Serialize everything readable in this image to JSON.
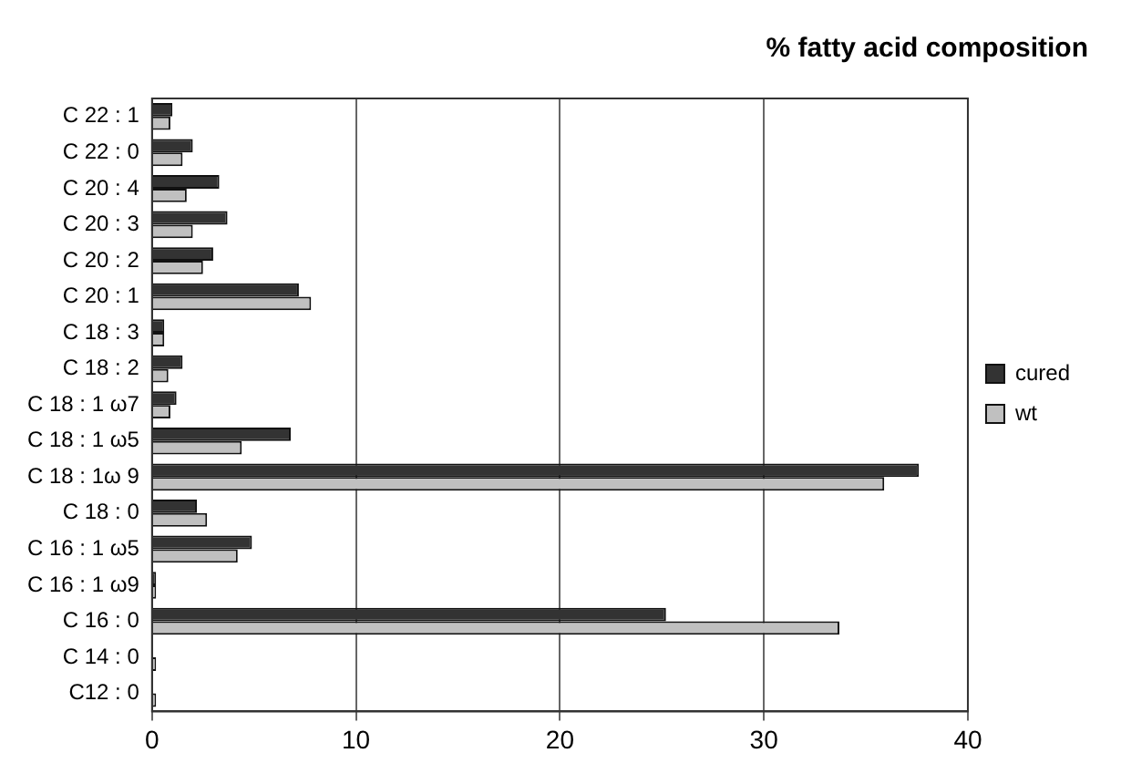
{
  "chart_data": {
    "type": "bar",
    "orientation": "horizontal",
    "title": "% fatty acid composition",
    "categories": [
      "C 22 : 1",
      "C 22 : 0",
      "C 20 : 4",
      "C 20 : 3",
      "C 20 : 2",
      "C 20 : 1",
      "C 18 : 3",
      "C 18 : 2",
      "C 18 : 1 ω7",
      "C 18 : 1 ω5",
      "C 18 : 1ω 9",
      "C 18 : 0",
      "C 16 : 1 ω5",
      "C 16 : 1 ω9",
      "C 16 : 0",
      "C 14 : 0",
      "C12 : 0"
    ],
    "series": [
      {
        "name": "cured",
        "color": "#333333",
        "values": [
          1.0,
          2.0,
          3.3,
          3.7,
          3.0,
          7.2,
          0.6,
          1.5,
          1.2,
          6.8,
          37.6,
          2.2,
          4.9,
          0.2,
          25.2,
          0,
          0
        ]
      },
      {
        "name": "wt",
        "color": "#c0c0c0",
        "values": [
          0.9,
          1.5,
          1.7,
          2.0,
          2.5,
          7.8,
          0.6,
          0.8,
          0.9,
          4.4,
          35.9,
          2.7,
          4.2,
          0.2,
          33.7,
          0.2,
          0.2
        ]
      }
    ],
    "xlim": [
      0,
      40
    ],
    "xticks": [
      0,
      10,
      20,
      30,
      40
    ],
    "grid": "x",
    "legend": "right"
  }
}
